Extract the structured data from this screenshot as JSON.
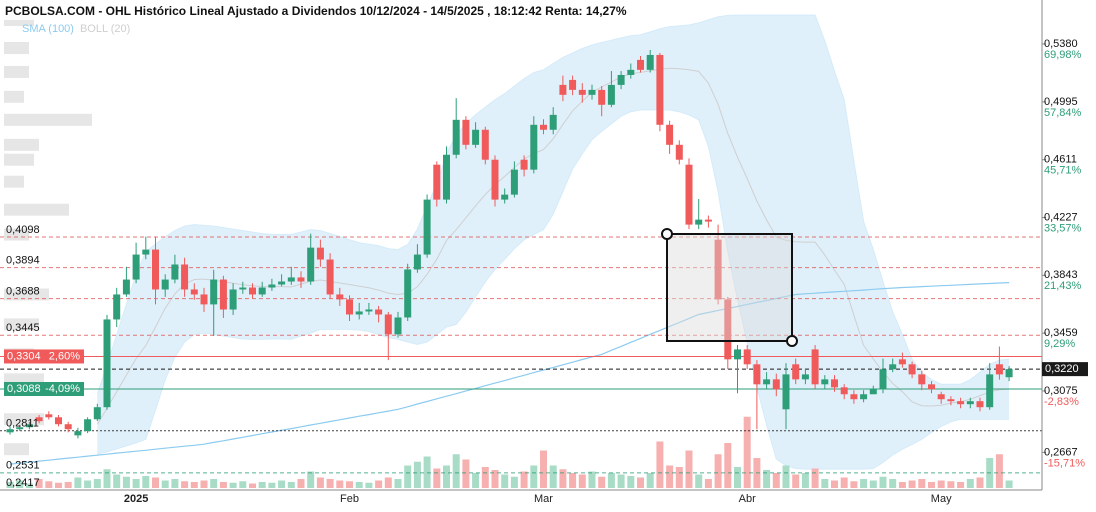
{
  "chart_data": {
    "type": "candlestick",
    "title": "PCBOLSA.COM - OHL Histórico Lineal Ajustado a Dividendos 10/12/2024 - 14/5/2025 , 18:12:42 Renta: 14,27%",
    "up_color": "#2e9e78",
    "down_color": "#f05a5a",
    "volume_up_color": "#a8dcc6",
    "volume_down_color": "#f7b0b0",
    "ylim": [
      0.2417,
      0.5672
    ],
    "yticks": [
      {
        "value": 0.538,
        "label": "0,5380",
        "change": "69,98%"
      },
      {
        "value": 0.4995,
        "label": "0,4995",
        "change": "57,84%"
      },
      {
        "value": 0.4611,
        "label": "0,4611",
        "change": "45,71%"
      },
      {
        "value": 0.4227,
        "label": "0,4227",
        "change": "33,57%"
      },
      {
        "value": 0.3843,
        "label": "0,3843",
        "change": "21,43%"
      },
      {
        "value": 0.3459,
        "label": "0,3459",
        "change": "9,29%"
      },
      {
        "value": 0.3075,
        "label": "0,3075",
        "change": "-2,83%"
      },
      {
        "value": 0.2667,
        "label": "0,2667",
        "change": "-15,71%"
      }
    ],
    "levels": [
      {
        "value": 0.4098,
        "label": "0,4098",
        "color": "#e05555"
      },
      {
        "value": 0.3894,
        "label": "0,3894",
        "color": "#e05555"
      },
      {
        "value": 0.3688,
        "label": "0,3688",
        "color": "#e05555"
      },
      {
        "value": 0.3445,
        "label": "0,3445",
        "color": "#e05555"
      },
      {
        "value": 0.2811,
        "label": "0,2811",
        "color": "#111111"
      },
      {
        "value": 0.2531,
        "label": "0,2531",
        "color": "#2e9e78"
      },
      {
        "value": 0.2417,
        "label": "0,2417",
        "color": "#e05555"
      }
    ],
    "price_lines": [
      {
        "value": 0.3304,
        "label": "0,3304",
        "change": "2,60%",
        "color": "#f05a5a"
      },
      {
        "value": 0.3088,
        "label": "0,3088",
        "change": "-4,09%",
        "color": "#2e9e78"
      }
    ],
    "last_price": {
      "value": 0.322,
      "label": "0,3220",
      "color": "#1a1a1a"
    },
    "categories": [
      null,
      null,
      null,
      null,
      null,
      null,
      null,
      null,
      null,
      null,
      null,
      null,
      null,
      "2025",
      null,
      null,
      null,
      null,
      null,
      null,
      null,
      null,
      null,
      null,
      null,
      null,
      null,
      null,
      null,
      null,
      null,
      null,
      null,
      null,
      null,
      "Feb",
      null,
      null,
      null,
      null,
      null,
      null,
      null,
      null,
      null,
      null,
      null,
      null,
      null,
      null,
      null,
      null,
      null,
      null,
      null,
      "Mar",
      null,
      null,
      null,
      null,
      null,
      null,
      null,
      null,
      null,
      null,
      null,
      null,
      null,
      null,
      null,
      null,
      null,
      null,
      null,
      null,
      "Abr",
      null,
      null,
      null,
      null,
      null,
      null,
      null,
      null,
      null,
      null,
      null,
      null,
      null,
      null,
      null,
      null,
      null,
      null,
      null,
      "May",
      null,
      null,
      null,
      null,
      null,
      null,
      null
    ],
    "open": [
      0.28,
      0.2821,
      0.2834,
      0.29,
      0.292,
      0.29,
      0.2854,
      0.278,
      0.2808,
      0.2887,
      0.2967,
      0.355,
      0.3716,
      0.3815,
      0.3981,
      0.4014,
      0.3749,
      0.3815,
      0.3915,
      0.3749,
      0.3716,
      0.365,
      0.3815,
      0.3616,
      0.3749,
      0.3762,
      0.3716,
      0.3762,
      0.3782,
      0.3802,
      0.3829,
      0.3802,
      0.4027,
      0.3948,
      0.3716,
      0.3683,
      0.3583,
      0.3603,
      0.3616,
      0.3583,
      0.3451,
      0.3563,
      0.3882,
      0.3981,
      0.4578,
      0.4346,
      0.4644,
      0.4876,
      0.471,
      0.481,
      0.4611,
      0.4346,
      0.4379,
      0.4611,
      0.4545,
      0.4843,
      0.481,
      0.5108,
      0.5141,
      0.5075,
      0.5042,
      0.5075,
      0.4976,
      0.5108,
      0.5174,
      0.5274,
      0.5208,
      0.5307,
      0.4843,
      0.471,
      0.4578,
      0.418,
      0.4213,
      0.408,
      0.3683,
      0.3285,
      0.3351,
      0.3252,
      0.3119,
      0.3152,
      0.2953,
      0.3252,
      0.3152,
      0.3351,
      0.3119,
      0.3152,
      0.3099,
      0.3053,
      0.302,
      0.3053,
      0.3086,
      0.3219,
      0.3285,
      0.3252,
      0.3185,
      0.3119,
      0.3053,
      0.302,
      0.3007,
      0.2987,
      0.3007,
      0.2967,
      0.3252,
      0.3166
    ],
    "high": [
      0.284,
      0.285,
      0.287,
      0.2915,
      0.294,
      0.2915,
      0.287,
      0.283,
      0.29,
      0.299,
      0.358,
      0.376,
      0.39,
      0.406,
      0.41,
      0.41,
      0.385,
      0.398,
      0.396,
      0.379,
      0.376,
      0.388,
      0.384,
      0.379,
      0.38,
      0.379,
      0.38,
      0.382,
      0.385,
      0.39,
      0.387,
      0.412,
      0.408,
      0.399,
      0.376,
      0.371,
      0.366,
      0.366,
      0.364,
      0.36,
      0.36,
      0.392,
      0.405,
      0.438,
      0.46,
      0.47,
      0.502,
      0.49,
      0.486,
      0.483,
      0.464,
      0.442,
      0.46,
      0.464,
      0.49,
      0.488,
      0.496,
      0.517,
      0.517,
      0.512,
      0.511,
      0.51,
      0.52,
      0.52,
      0.525,
      0.53,
      0.534,
      0.532,
      0.487,
      0.474,
      0.462,
      0.435,
      0.424,
      0.418,
      0.37,
      0.338,
      0.338,
      0.328,
      0.32,
      0.319,
      0.326,
      0.329,
      0.322,
      0.338,
      0.318,
      0.318,
      0.312,
      0.308,
      0.308,
      0.311,
      0.329,
      0.329,
      0.333,
      0.327,
      0.321,
      0.314,
      0.307,
      0.304,
      0.303,
      0.303,
      0.303,
      0.326,
      0.337,
      0.324
    ],
    "low": [
      0.2785,
      0.281,
      0.282,
      0.286,
      0.2885,
      0.284,
      0.28,
      0.276,
      0.2795,
      0.2875,
      0.295,
      0.35,
      0.37,
      0.379,
      0.395,
      0.365,
      0.37,
      0.379,
      0.37,
      0.368,
      0.36,
      0.344,
      0.356,
      0.358,
      0.372,
      0.369,
      0.37,
      0.374,
      0.377,
      0.378,
      0.376,
      0.378,
      0.39,
      0.369,
      0.364,
      0.354,
      0.355,
      0.358,
      0.353,
      0.328,
      0.343,
      0.354,
      0.386,
      0.396,
      0.43,
      0.432,
      0.462,
      0.468,
      0.469,
      0.458,
      0.43,
      0.432,
      0.436,
      0.45,
      0.452,
      0.478,
      0.478,
      0.5,
      0.504,
      0.499,
      0.501,
      0.49,
      0.496,
      0.508,
      0.515,
      0.519,
      0.519,
      0.48,
      0.465,
      0.458,
      0.415,
      0.415,
      0.416,
      0.365,
      0.322,
      0.306,
      0.322,
      0.2821,
      0.309,
      0.304,
      0.2821,
      0.312,
      0.312,
      0.309,
      0.309,
      0.307,
      0.302,
      0.299,
      0.3,
      0.306,
      0.306,
      0.32,
      0.323,
      0.316,
      0.308,
      0.306,
      0.299,
      0.298,
      0.296,
      0.296,
      0.294,
      0.295,
      0.315,
      0.314
    ],
    "close": [
      0.2821,
      0.2834,
      0.2854,
      0.2874,
      0.29,
      0.2854,
      0.2821,
      0.2808,
      0.2887,
      0.2967,
      0.355,
      0.3716,
      0.3815,
      0.3981,
      0.4014,
      0.3749,
      0.3815,
      0.3915,
      0.3749,
      0.3716,
      0.365,
      0.3815,
      0.3616,
      0.3749,
      0.3762,
      0.3716,
      0.3762,
      0.3782,
      0.3802,
      0.3829,
      0.3802,
      0.4027,
      0.3948,
      0.3716,
      0.3683,
      0.3583,
      0.3603,
      0.3616,
      0.3583,
      0.3451,
      0.3563,
      0.3882,
      0.3981,
      0.4346,
      0.4346,
      0.4644,
      0.4876,
      0.471,
      0.481,
      0.4611,
      0.4346,
      0.4379,
      0.4545,
      0.4545,
      0.4843,
      0.481,
      0.4909,
      0.5042,
      0.5075,
      0.5042,
      0.5075,
      0.4976,
      0.5108,
      0.5174,
      0.5208,
      0.5208,
      0.5307,
      0.4843,
      0.471,
      0.4611,
      0.418,
      0.4213,
      0.42,
      0.3683,
      0.3285,
      0.3351,
      0.3252,
      0.3119,
      0.3152,
      0.3086,
      0.3185,
      0.3152,
      0.3185,
      0.3119,
      0.3152,
      0.3099,
      0.3053,
      0.302,
      0.3053,
      0.3086,
      0.3219,
      0.3252,
      0.3252,
      0.3185,
      0.3119,
      0.3086,
      0.302,
      0.3007,
      0.2987,
      0.3007,
      0.2967,
      0.3185,
      0.3185,
      0.322
    ],
    "vlim": [
      0,
      100
    ],
    "volume": [
      8,
      10,
      6,
      12,
      9,
      7,
      8,
      14,
      10,
      12,
      25,
      18,
      15,
      12,
      16,
      14,
      10,
      12,
      9,
      8,
      10,
      12,
      8,
      7,
      9,
      6,
      8,
      7,
      10,
      8,
      12,
      22,
      14,
      12,
      10,
      9,
      8,
      7,
      10,
      14,
      12,
      30,
      35,
      42,
      26,
      30,
      45,
      38,
      20,
      28,
      24,
      18,
      15,
      22,
      30,
      50,
      30,
      25,
      20,
      18,
      22,
      15,
      20,
      18,
      16,
      14,
      20,
      62,
      30,
      28,
      50,
      18,
      12,
      45,
      60,
      28,
      95,
      40,
      24,
      20,
      30,
      18,
      20,
      26,
      12,
      10,
      14,
      9,
      12,
      10,
      15,
      12,
      8,
      10,
      12,
      8,
      10,
      9,
      8,
      12,
      14,
      40,
      45,
      10
    ],
    "volume_profile": {
      "color": "#e6e6e6",
      "prices": [
        0.5539,
        0.5353,
        0.5194,
        0.5029,
        0.4876,
        0.471,
        0.4611,
        0.4465,
        0.4279,
        0.4114,
        0.3716,
        0.3517,
        0.3318,
        0.3152,
        0.2887,
        0.2688
      ],
      "values": [
        30,
        25,
        25,
        20,
        88,
        35,
        30,
        20,
        65,
        25,
        45,
        35,
        30,
        40,
        40,
        25
      ]
    },
    "indicators": [
      {
        "name": "SMA (100)",
        "color": "#8ccbef",
        "values": [
          0.2589,
          0.2596,
          0.2602,
          0.2609,
          0.2615,
          0.2622,
          0.2629,
          0.2635,
          0.2642,
          0.2648,
          0.2655,
          0.2662,
          0.2668,
          0.2675,
          0.2681,
          0.2688,
          0.2695,
          0.2701,
          0.2708,
          0.2714,
          0.2721,
          0.2733,
          0.2744,
          0.2756,
          0.2767,
          0.2779,
          0.2791,
          0.2802,
          0.2814,
          0.2825,
          0.2837,
          0.2849,
          0.286,
          0.2872,
          0.2883,
          0.2895,
          0.2907,
          0.2918,
          0.293,
          0.2941,
          0.2953,
          0.297,
          0.2988,
          0.3005,
          0.3023,
          0.304,
          0.3057,
          0.3075,
          0.3092,
          0.311,
          0.3127,
          0.3144,
          0.3162,
          0.3179,
          0.3197,
          0.3214,
          0.3231,
          0.3249,
          0.3266,
          0.3284,
          0.3301,
          0.3318,
          0.3345,
          0.3371,
          0.3398,
          0.3424,
          0.3451,
          0.3477,
          0.3504,
          0.353,
          0.3557,
          0.3583,
          0.3596,
          0.361,
          0.3623,
          0.3636,
          0.365,
          0.3663,
          0.3676,
          0.3689,
          0.3703,
          0.3716,
          0.372,
          0.3724,
          0.3729,
          0.3733,
          0.3737,
          0.3741,
          0.3745,
          0.375,
          0.3754,
          0.3758,
          0.3762,
          0.3765,
          0.3768,
          0.3771,
          0.3774,
          0.3777,
          0.378,
          0.3783,
          0.3786,
          0.3789,
          0.3792,
          0.3795
        ]
      },
      {
        "name": "BOLL (20)",
        "color": "#cfcfcf",
        "fill": "#d4ebf9",
        "upper": [
          null,
          null,
          null,
          null,
          null,
          null,
          null,
          null,
          null,
          0.3053,
          0.325,
          0.345,
          0.365,
          0.385,
          0.4,
          0.405,
          0.41,
          0.414,
          0.417,
          0.418,
          0.4175,
          0.417,
          0.416,
          0.415,
          0.414,
          0.413,
          0.412,
          0.4115,
          0.4115,
          0.4114,
          0.413,
          0.4147,
          0.414,
          0.412,
          0.41,
          0.408,
          0.406,
          0.405,
          0.404,
          0.402,
          0.4014,
          0.4047,
          0.415,
          0.43,
          0.445,
          0.465,
          0.4777,
          0.485,
          0.491,
          0.496,
          0.5009,
          0.505,
          0.51,
          0.515,
          0.519,
          0.5208,
          0.525,
          0.529,
          0.532,
          0.535,
          0.5373,
          0.539,
          0.5405,
          0.542,
          0.5435,
          0.544,
          0.546,
          0.548,
          0.5495,
          0.55,
          0.5506,
          0.552,
          0.554,
          0.556,
          0.557,
          0.5572,
          0.5572,
          0.5572,
          0.5572,
          0.5572,
          0.5572,
          0.5572,
          0.5572,
          0.5572,
          0.54,
          0.52,
          0.5009,
          0.46,
          0.42,
          0.4014,
          0.38,
          0.36,
          0.345,
          0.3285,
          0.32,
          0.315,
          0.312,
          0.3119,
          0.312,
          0.315,
          0.32,
          0.325,
          0.328,
          0.3285
        ],
        "middle": [
          null,
          null,
          null,
          null,
          null,
          null,
          null,
          null,
          null,
          0.2854,
          0.296,
          0.307,
          0.318,
          0.329,
          0.3377,
          0.35,
          0.3625,
          0.372,
          0.3785,
          0.3815,
          0.3818,
          0.381,
          0.38,
          0.379,
          0.378,
          0.3774,
          0.3769,
          0.3768,
          0.3768,
          0.3766,
          0.3785,
          0.3804,
          0.3812,
          0.3802,
          0.3792,
          0.3782,
          0.377,
          0.376,
          0.3745,
          0.3725,
          0.3716,
          0.3724,
          0.3767,
          0.385,
          0.395,
          0.4075,
          0.4147,
          0.4225,
          0.4305,
          0.438,
          0.4446,
          0.45,
          0.456,
          0.4615,
          0.4652,
          0.4678,
          0.475,
          0.4845,
          0.4935,
          0.5,
          0.5059,
          0.5095,
          0.5128,
          0.516,
          0.5183,
          0.5191,
          0.5201,
          0.5211,
          0.5219,
          0.5215,
          0.5208,
          0.5198,
          0.512,
          0.498,
          0.4785,
          0.4628,
          0.4486,
          0.4336,
          0.4211,
          0.4097,
          0.4076,
          0.4066,
          0.4064,
          0.4064,
          0.3978,
          0.3878,
          0.3783,
          0.3578,
          0.3378,
          0.3287,
          0.32,
          0.3125,
          0.3069,
          0.3003,
          0.2977,
          0.2975,
          0.298,
          0.2995,
          0.3004,
          0.3019,
          0.3044,
          0.3069,
          0.3084,
          0.3086
        ],
        "lower": [
          null,
          null,
          null,
          null,
          null,
          null,
          null,
          null,
          null,
          0.2655,
          0.267,
          0.269,
          0.271,
          0.273,
          0.2754,
          0.295,
          0.315,
          0.33,
          0.34,
          0.345,
          0.346,
          0.345,
          0.344,
          0.343,
          0.342,
          0.3418,
          0.3418,
          0.342,
          0.342,
          0.3418,
          0.344,
          0.346,
          0.3484,
          0.3484,
          0.3484,
          0.3484,
          0.348,
          0.347,
          0.345,
          0.343,
          0.3418,
          0.34,
          0.3384,
          0.34,
          0.345,
          0.35,
          0.3517,
          0.36,
          0.37,
          0.38,
          0.3882,
          0.395,
          0.402,
          0.408,
          0.4114,
          0.4147,
          0.425,
          0.44,
          0.455,
          0.465,
          0.4744,
          0.48,
          0.485,
          0.49,
          0.493,
          0.4942,
          0.4942,
          0.4942,
          0.4942,
          0.493,
          0.4909,
          0.4876,
          0.47,
          0.44,
          0.4,
          0.3683,
          0.34,
          0.31,
          0.285,
          0.2622,
          0.258,
          0.256,
          0.2556,
          0.2556,
          0.2556,
          0.2556,
          0.2556,
          0.2556,
          0.2556,
          0.256,
          0.26,
          0.265,
          0.2688,
          0.272,
          0.2754,
          0.28,
          0.284,
          0.287,
          0.2887,
          0.2887,
          0.2887,
          0.2887,
          0.2887,
          0.2887
        ]
      }
    ]
  }
}
